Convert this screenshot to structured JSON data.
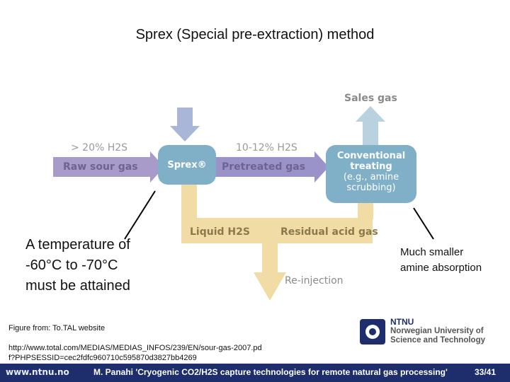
{
  "title": "Sprex (Special pre-extraction) method",
  "diagram": {
    "sales_gas": "Sales gas",
    "raw_h2s": "> 20% H2S",
    "raw_sour_gas": "Raw sour gas",
    "sprex": "Sprex®",
    "pretreated_h2s": "10-12% H2S",
    "pretreated_gas": "Pretreated gas",
    "conventional_line1": "Conventional",
    "conventional_line2": "treating",
    "conventional_line3": "(e.g., amine",
    "conventional_line4": "scrubbing)",
    "liquid_h2s": "Liquid H2S",
    "residual_acid_gas": "Residual acid gas",
    "reinjection": "Re-injection"
  },
  "annotations": {
    "left_line1": "A temperature of",
    "left_line2": "-60°C to -70°C",
    "left_line3": "must be attained",
    "right_line1": "Much smaller",
    "right_line2": "amine absorption"
  },
  "source_label": "Figure from: To.TAL website",
  "url": "http://www.total.com/MEDIAS/MEDIAS_INFOS/239/EN/sour-gas-2007.pdf?PHPSESSID=cec2fdfc960710c595870d3827bb4269",
  "ntnu": {
    "abbr": "NTNU",
    "line1": "Norwegian University of",
    "line2": "Science and Technology"
  },
  "footer": {
    "website": "www.ntnu.no",
    "citation": "M. Panahi 'Cryogenic CO2/H2S capture technologies for remote natural gas processing'",
    "page": "33/41"
  },
  "colors": {
    "raw_gas_arrow": "#a99bc9",
    "feed_arrow": "#a9b6d8",
    "sprex_box": "#7fb0c8",
    "pretreated_arrow": "#9a93c9",
    "treating_box": "#7fb0c8",
    "liquid_flow": "#f1dca5",
    "footer_bg": "#1e2d6b"
  }
}
